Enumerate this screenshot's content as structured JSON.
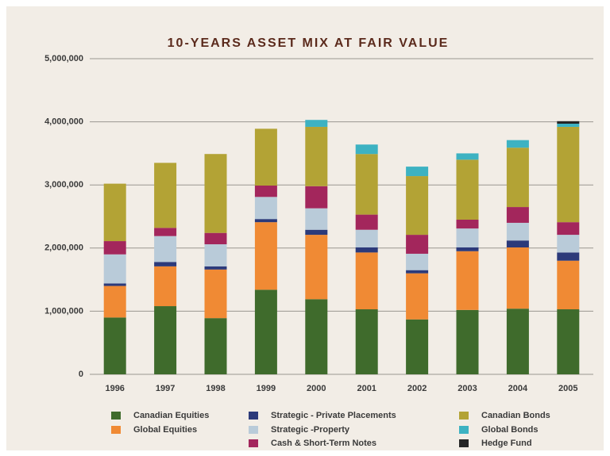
{
  "chart_data": {
    "type": "stacked_bar",
    "title": "10-YEARS ASSET MIX AT FAIR VALUE",
    "categories": [
      "1996",
      "1997",
      "1998",
      "1999",
      "2000",
      "2001",
      "2002",
      "2003",
      "2004",
      "2005"
    ],
    "series": [
      {
        "name": "Canadian Equities",
        "color": "#3f6b2c",
        "values": [
          900000,
          1080000,
          890000,
          1340000,
          1190000,
          1030000,
          870000,
          1020000,
          1040000,
          1030000
        ]
      },
      {
        "name": "Global Equities",
        "color": "#f08a34",
        "values": [
          500000,
          630000,
          770000,
          1070000,
          1020000,
          900000,
          730000,
          930000,
          970000,
          770000
        ]
      },
      {
        "name": "Strategic - Private Placements",
        "color": "#2c3a7a",
        "values": [
          40000,
          70000,
          50000,
          50000,
          80000,
          80000,
          50000,
          60000,
          110000,
          130000
        ]
      },
      {
        "name": "Strategic -Property",
        "color": "#b9cbd9",
        "values": [
          460000,
          410000,
          350000,
          350000,
          340000,
          280000,
          260000,
          300000,
          280000,
          280000
        ]
      },
      {
        "name": "Cash & Short-Term Notes",
        "color": "#a3265c",
        "values": [
          210000,
          130000,
          180000,
          180000,
          350000,
          240000,
          300000,
          140000,
          250000,
          200000
        ]
      },
      {
        "name": "Canadian Bonds",
        "color": "#b3a335",
        "values": [
          910000,
          1030000,
          1250000,
          900000,
          940000,
          960000,
          930000,
          950000,
          940000,
          1510000
        ]
      },
      {
        "name": "Global Bonds",
        "color": "#3db2c2",
        "values": [
          0,
          0,
          0,
          0,
          110000,
          150000,
          150000,
          100000,
          120000,
          50000
        ]
      },
      {
        "name": "Hedge Fund",
        "color": "#252525",
        "values": [
          0,
          0,
          0,
          0,
          0,
          0,
          0,
          0,
          0,
          40000
        ]
      }
    ],
    "ylim": [
      0,
      5000000
    ],
    "yticks": [
      0,
      {
        "value": 1000000,
        "label": "1,000,000"
      },
      {
        "value": 2000000,
        "label": "2,000,000"
      },
      {
        "value": 3000000,
        "label": "3,000,000"
      },
      {
        "value": 4000000,
        "label": "4,000,000"
      },
      {
        "value": 5000000,
        "label": "5,000,000"
      }
    ],
    "grid": true
  }
}
